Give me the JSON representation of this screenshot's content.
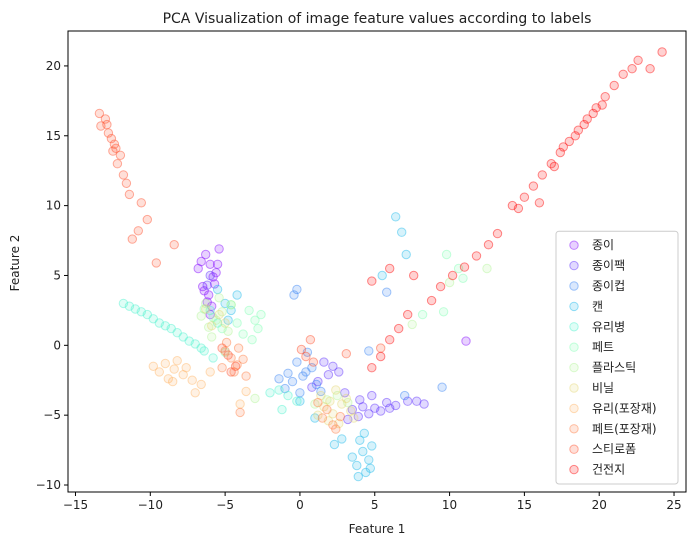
{
  "chart_data": {
    "type": "scatter",
    "title": "PCA Visualization of image feature values according to labels",
    "xlabel": "Feature 1",
    "ylabel": "Feature 2",
    "xlim": [
      -15.5,
      25.8
    ],
    "ylim": [
      -10.5,
      22.5
    ],
    "xticks": [
      {
        "value": -15,
        "label": "−15"
      },
      {
        "value": -10,
        "label": "−10"
      },
      {
        "value": -5,
        "label": "−5"
      },
      {
        "value": 0,
        "label": "0"
      },
      {
        "value": 5,
        "label": "5"
      },
      {
        "value": 10,
        "label": "10"
      },
      {
        "value": 15,
        "label": "15"
      },
      {
        "value": 20,
        "label": "20"
      },
      {
        "value": 25,
        "label": "25"
      }
    ],
    "yticks": [
      {
        "value": -10,
        "label": "−10"
      },
      {
        "value": -5,
        "label": "−5"
      },
      {
        "value": 0,
        "label": "0"
      },
      {
        "value": 5,
        "label": "5"
      },
      {
        "value": 10,
        "label": "10"
      },
      {
        "value": 15,
        "label": "15"
      },
      {
        "value": 20,
        "label": "20"
      }
    ],
    "grid": false,
    "legend_position": "lower-right",
    "series": [
      {
        "name": "종이",
        "color": "#8000ff",
        "points": [
          [
            -6.3,
            6.5
          ],
          [
            -6.0,
            5.8
          ],
          [
            -5.8,
            4.9
          ],
          [
            -6.5,
            4.2
          ],
          [
            -6.1,
            3.6
          ],
          [
            -5.6,
            5.2
          ],
          [
            -6.8,
            5.5
          ],
          [
            -5.9,
            2.8
          ],
          [
            -6.2,
            3.1
          ],
          [
            -5.4,
            6.9
          ],
          [
            -6.6,
            6.0
          ],
          [
            -5.7,
            4.4
          ],
          [
            -6.0,
            2.2
          ],
          [
            -6.4,
            3.9
          ],
          [
            -5.5,
            5.8
          ],
          [
            11.1,
            0.3
          ]
        ]
      },
      {
        "name": "종이팩",
        "color": "#5a2dfd",
        "points": [
          [
            3.5,
            -4.6
          ],
          [
            4.2,
            -4.4
          ],
          [
            5.0,
            -4.5
          ],
          [
            5.8,
            -4.1
          ],
          [
            6.4,
            -4.3
          ],
          [
            7.2,
            -4.0
          ],
          [
            3.9,
            -5.1
          ],
          [
            4.6,
            -4.9
          ],
          [
            5.4,
            -4.7
          ],
          [
            6.0,
            -4.5
          ],
          [
            4.0,
            -3.9
          ],
          [
            4.8,
            -3.6
          ],
          [
            3.2,
            -5.3
          ],
          [
            1.6,
            -1.2
          ],
          [
            2.2,
            -1.5
          ],
          [
            1.9,
            -2.1
          ],
          [
            2.6,
            -1.9
          ],
          [
            0.8,
            -3.0
          ],
          [
            1.2,
            -2.6
          ],
          [
            3.0,
            -3.4
          ],
          [
            7.8,
            -4.0
          ],
          [
            8.3,
            -4.2
          ],
          [
            -6.0,
            5.0
          ],
          [
            -6.2,
            4.3
          ]
        ]
      },
      {
        "name": "종이컵",
        "color": "#3280f5",
        "points": [
          [
            -0.5,
            -2.6
          ],
          [
            -1.0,
            -3.1
          ],
          [
            0.2,
            -2.2
          ],
          [
            0.8,
            -1.6
          ],
          [
            -0.2,
            -1.2
          ],
          [
            0.5,
            -0.5
          ],
          [
            1.1,
            -2.8
          ],
          [
            -0.8,
            -2.0
          ],
          [
            0.0,
            -3.4
          ],
          [
            -0.4,
            3.6
          ],
          [
            -0.2,
            4.0
          ],
          [
            5.8,
            3.8
          ],
          [
            4.6,
            -0.4
          ],
          [
            9.5,
            -3.0
          ],
          [
            7.0,
            -3.6
          ],
          [
            0.4,
            -1.9
          ],
          [
            1.4,
            -3.3
          ],
          [
            -1.4,
            -2.4
          ]
        ]
      },
      {
        "name": "캔",
        "color": "#19b9ea",
        "points": [
          [
            4.2,
            -7.6
          ],
          [
            4.6,
            -8.2
          ],
          [
            3.8,
            -8.6
          ],
          [
            4.8,
            -7.2
          ],
          [
            4.0,
            -6.8
          ],
          [
            4.4,
            -9.1
          ],
          [
            3.5,
            -8.0
          ],
          [
            4.7,
            -8.8
          ],
          [
            3.9,
            -9.4
          ],
          [
            4.3,
            -6.3
          ],
          [
            2.8,
            -6.7
          ],
          [
            2.3,
            -7.1
          ],
          [
            -5.0,
            3.0
          ],
          [
            -4.6,
            2.5
          ],
          [
            -5.5,
            4.0
          ],
          [
            -4.2,
            3.6
          ],
          [
            -4.8,
            1.8
          ],
          [
            6.4,
            9.2
          ],
          [
            6.8,
            8.1
          ],
          [
            7.1,
            6.5
          ],
          [
            5.5,
            5.0
          ],
          [
            0.0,
            -4.0
          ],
          [
            1.0,
            -5.2
          ]
        ]
      },
      {
        "name": "유리병",
        "color": "#4cf2ce",
        "points": [
          [
            -11.8,
            3.0
          ],
          [
            -11.0,
            2.6
          ],
          [
            -10.2,
            2.2
          ],
          [
            -9.4,
            1.6
          ],
          [
            -8.6,
            1.2
          ],
          [
            -7.8,
            0.6
          ],
          [
            -7.0,
            0.1
          ],
          [
            -6.4,
            -0.4
          ],
          [
            -5.8,
            -0.9
          ],
          [
            -11.4,
            2.8
          ],
          [
            -10.6,
            2.4
          ],
          [
            -9.8,
            1.9
          ],
          [
            -9.0,
            1.4
          ],
          [
            -8.2,
            0.9
          ],
          [
            -7.4,
            0.3
          ],
          [
            -6.6,
            -0.2
          ],
          [
            -1.4,
            -3.2
          ],
          [
            -0.8,
            -3.6
          ],
          [
            -2.0,
            -3.4
          ],
          [
            -0.2,
            -4.0
          ],
          [
            -1.2,
            -4.6
          ],
          [
            -6.0,
            2.5
          ],
          [
            -5.5,
            1.6
          ]
        ]
      },
      {
        "name": "페트",
        "color": "#80ffb4",
        "points": [
          [
            -3.0,
            1.8
          ],
          [
            -3.4,
            2.5
          ],
          [
            -2.8,
            1.2
          ],
          [
            -3.8,
            0.8
          ],
          [
            -4.2,
            1.6
          ],
          [
            -2.6,
            2.2
          ],
          [
            -4.6,
            2.9
          ],
          [
            -3.2,
            0.4
          ],
          [
            -5.2,
            1.2
          ],
          [
            -5.8,
            2.0
          ],
          [
            -6.4,
            2.6
          ],
          [
            -5.0,
            -0.5
          ],
          [
            9.8,
            6.5
          ],
          [
            10.6,
            5.5
          ],
          [
            9.6,
            2.4
          ],
          [
            10.9,
            4.8
          ],
          [
            8.2,
            2.2
          ]
        ]
      },
      {
        "name": "플라스틱",
        "color": "#b2f396",
        "points": [
          [
            -5.6,
            1.8
          ],
          [
            -6.1,
            1.3
          ],
          [
            -5.2,
            2.4
          ],
          [
            -6.6,
            2.1
          ],
          [
            -4.8,
            1.0
          ],
          [
            -5.9,
            0.6
          ],
          [
            -6.3,
            3.0
          ],
          [
            -4.6,
            2.9
          ],
          [
            -5.4,
            3.4
          ],
          [
            1.0,
            -4.2
          ],
          [
            1.8,
            -3.9
          ],
          [
            2.5,
            -3.6
          ],
          [
            3.2,
            -4.1
          ],
          [
            12.5,
            5.5
          ],
          [
            10.0,
            4.5
          ],
          [
            7.5,
            1.5
          ],
          [
            -3.0,
            -3.8
          ]
        ]
      },
      {
        "name": "비닐",
        "color": "#e4d776",
        "points": [
          [
            1.6,
            -4.4
          ],
          [
            2.2,
            -4.9
          ],
          [
            2.8,
            -4.2
          ],
          [
            3.4,
            -4.7
          ],
          [
            1.9,
            -5.4
          ],
          [
            2.6,
            -5.6
          ],
          [
            3.1,
            -3.8
          ],
          [
            1.4,
            -3.6
          ],
          [
            2.4,
            -3.2
          ],
          [
            3.6,
            -5.2
          ],
          [
            2.0,
            -4.0
          ],
          [
            1.2,
            -5.0
          ],
          [
            -5.4,
            2.2
          ],
          [
            -5.9,
            1.4
          ],
          [
            -6.3,
            2.6
          ],
          [
            -5.0,
            1.6
          ]
        ]
      },
      {
        "name": "유리(포장재)",
        "color": "#ffb464",
        "points": [
          [
            -9.0,
            -1.3
          ],
          [
            -8.4,
            -1.7
          ],
          [
            -7.8,
            -2.1
          ],
          [
            -9.4,
            -1.9
          ],
          [
            -8.8,
            -2.4
          ],
          [
            -8.2,
            -1.1
          ],
          [
            -7.6,
            -1.6
          ],
          [
            -9.8,
            -1.5
          ],
          [
            -7.2,
            -2.5
          ],
          [
            -6.6,
            -2.8
          ],
          [
            -6.0,
            -1.9
          ],
          [
            -7.0,
            -3.4
          ],
          [
            -8.5,
            -2.6
          ],
          [
            -4.0,
            -4.2
          ],
          [
            -3.6,
            -3.3
          ]
        ]
      },
      {
        "name": "페트(포장재)",
        "color": "#ff7c41",
        "points": [
          [
            -4.6,
            -0.9
          ],
          [
            -4.2,
            -1.4
          ],
          [
            -5.0,
            -0.4
          ],
          [
            -4.4,
            -1.9
          ],
          [
            -3.8,
            -1.0
          ],
          [
            -5.2,
            -1.6
          ],
          [
            -4.9,
            0.2
          ],
          [
            -3.6,
            -2.2
          ],
          [
            -4.1,
            -0.2
          ],
          [
            1.5,
            -5.2
          ],
          [
            2.2,
            -5.7
          ],
          [
            1.8,
            -4.6
          ],
          [
            2.7,
            -5.1
          ],
          [
            2.4,
            -6.0
          ],
          [
            1.2,
            -4.1
          ],
          [
            -4.0,
            -4.8
          ]
        ]
      },
      {
        "name": "스티로폼",
        "color": "#ff4c27",
        "points": [
          [
            -12.8,
            15.2
          ],
          [
            -12.4,
            14.4
          ],
          [
            -12.0,
            13.6
          ],
          [
            -12.6,
            14.8
          ],
          [
            -12.2,
            13.0
          ],
          [
            -11.8,
            12.2
          ],
          [
            -13.0,
            16.2
          ],
          [
            -13.3,
            15.7
          ],
          [
            -12.5,
            13.9
          ],
          [
            -11.6,
            11.6
          ],
          [
            -11.4,
            10.8
          ],
          [
            -10.6,
            10.2
          ],
          [
            -10.2,
            9.0
          ],
          [
            -10.8,
            8.2
          ],
          [
            -11.2,
            7.6
          ],
          [
            -13.4,
            16.6
          ],
          [
            -12.9,
            15.8
          ],
          [
            -12.3,
            14.1
          ],
          [
            -4.8,
            -0.7
          ],
          [
            -4.3,
            -1.5
          ],
          [
            -5.2,
            -0.2
          ],
          [
            -4.6,
            -1.9
          ],
          [
            0.4,
            -0.8
          ],
          [
            0.9,
            -1.2
          ],
          [
            0.1,
            -0.3
          ],
          [
            0.7,
            0.4
          ],
          [
            3.1,
            -0.6
          ],
          [
            5.4,
            -0.2
          ],
          [
            -9.6,
            5.9
          ],
          [
            -8.4,
            7.2
          ]
        ]
      },
      {
        "name": "건전지",
        "color": "#ff0000",
        "points": [
          [
            16.2,
            12.2
          ],
          [
            16.8,
            13.0
          ],
          [
            17.4,
            13.8
          ],
          [
            18.0,
            14.6
          ],
          [
            18.6,
            15.4
          ],
          [
            19.2,
            16.2
          ],
          [
            19.8,
            17.0
          ],
          [
            20.4,
            17.8
          ],
          [
            21.0,
            18.6
          ],
          [
            21.6,
            19.4
          ],
          [
            22.2,
            19.8
          ],
          [
            17.0,
            12.8
          ],
          [
            17.6,
            14.2
          ],
          [
            18.4,
            15.0
          ],
          [
            19.0,
            15.8
          ],
          [
            19.6,
            16.6
          ],
          [
            20.2,
            17.2
          ],
          [
            15.6,
            11.4
          ],
          [
            15.0,
            10.6
          ],
          [
            14.6,
            9.8
          ],
          [
            14.2,
            10.0
          ],
          [
            16.0,
            10.2
          ],
          [
            13.2,
            8.0
          ],
          [
            12.6,
            7.2
          ],
          [
            11.8,
            6.4
          ],
          [
            11.0,
            5.6
          ],
          [
            10.2,
            5.0
          ],
          [
            9.4,
            4.2
          ],
          [
            8.8,
            3.2
          ],
          [
            7.2,
            2.2
          ],
          [
            6.6,
            1.2
          ],
          [
            6.0,
            0.4
          ],
          [
            5.4,
            -0.8
          ],
          [
            4.8,
            -1.6
          ],
          [
            24.2,
            21.0
          ],
          [
            23.4,
            19.8
          ],
          [
            22.6,
            20.4
          ],
          [
            7.6,
            5.0
          ],
          [
            6.0,
            5.5
          ],
          [
            4.8,
            4.6
          ]
        ]
      }
    ]
  }
}
